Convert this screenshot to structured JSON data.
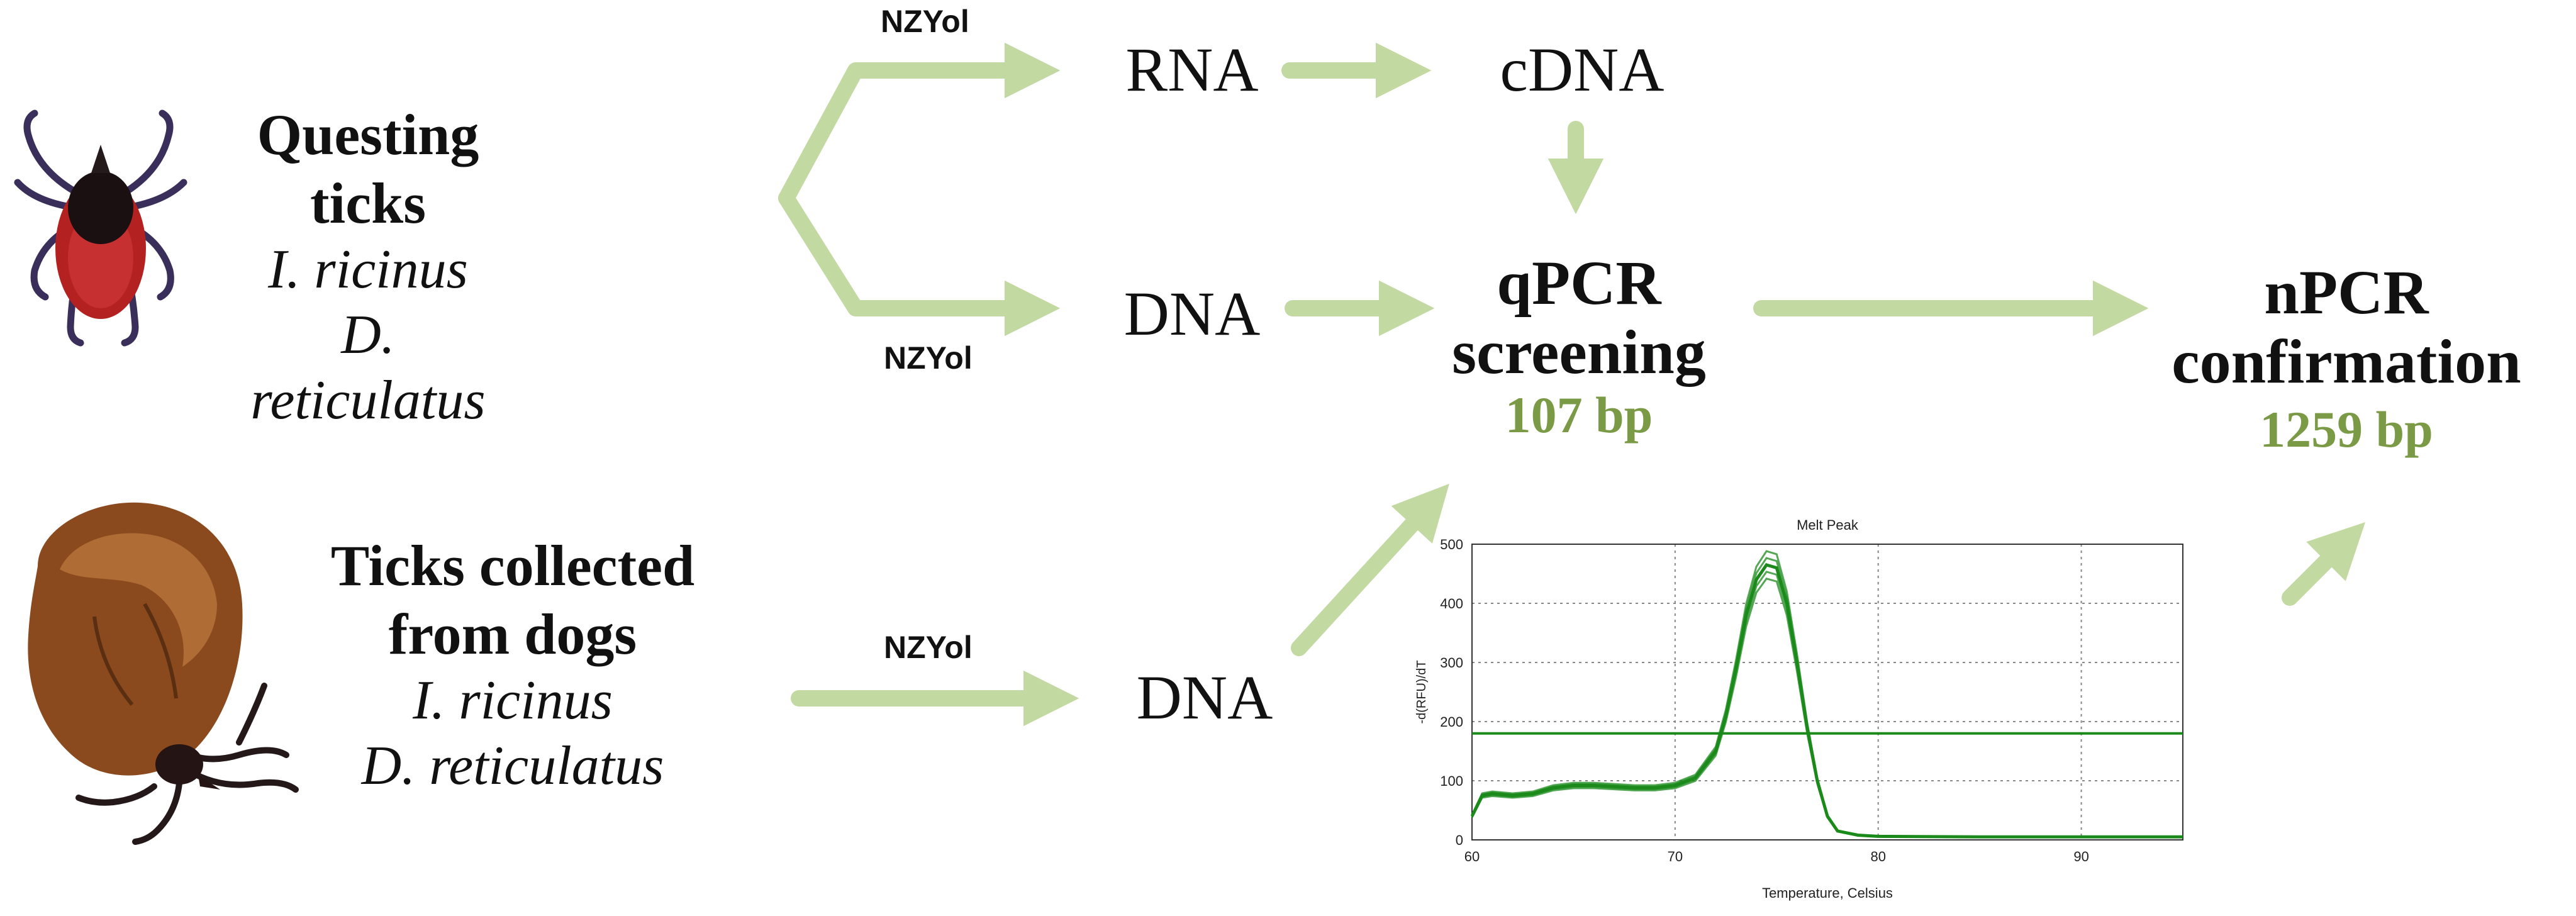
{
  "colors": {
    "arrow": "#c3d9a2",
    "accent": "#7a9a45",
    "curve": "#1b8a1b"
  },
  "questing": {
    "title": "Questing ticks",
    "species1": "I. ricinus",
    "species2": "D. reticulatus"
  },
  "dogs": {
    "title_line1": "Ticks collected",
    "title_line2": "from dogs",
    "species1": "I. ricinus",
    "species2": "D. reticulatus"
  },
  "labels": {
    "nzyol_top": "NZYol",
    "nzyol_mid": "NZYol",
    "nzyol_bottom": "NZYol"
  },
  "nodes": {
    "rna": "RNA",
    "cdna": "cDNA",
    "dna_top": "DNA",
    "dna_bottom": "DNA"
  },
  "qpcr": {
    "line1": "qPCR",
    "line2": "screening",
    "size": "107 bp"
  },
  "npcr": {
    "line1": "nPCR",
    "line2": "confirmation",
    "size": "1259 bp"
  },
  "icons": {
    "questing_tick": "hard-tick-icon",
    "dog_tick": "engorged-tick-icon"
  },
  "chart_data": {
    "type": "line",
    "title": "Melt Peak",
    "xlabel": "Temperature, Celsius",
    "ylabel": "-d(RFU)/dT",
    "xlim": [
      60,
      95
    ],
    "ylim": [
      0,
      500
    ],
    "xticks": [
      60,
      70,
      80,
      90
    ],
    "yticks": [
      0,
      100,
      200,
      300,
      400,
      500
    ],
    "grid": true,
    "threshold": 180,
    "series": [
      {
        "name": "melt curve",
        "x": [
          60,
          60.5,
          61,
          62,
          63,
          64,
          65,
          66,
          67,
          68,
          69,
          70,
          71,
          72,
          72.5,
          73,
          73.5,
          74,
          74.5,
          75,
          75.5,
          76,
          76.5,
          77,
          77.5,
          78,
          79,
          80,
          85,
          90,
          95
        ],
        "y": [
          40,
          75,
          78,
          75,
          78,
          88,
          92,
          92,
          90,
          88,
          88,
          92,
          105,
          150,
          210,
          290,
          380,
          440,
          465,
          460,
          400,
          300,
          190,
          100,
          40,
          15,
          8,
          6,
          5,
          5,
          5
        ]
      }
    ]
  }
}
